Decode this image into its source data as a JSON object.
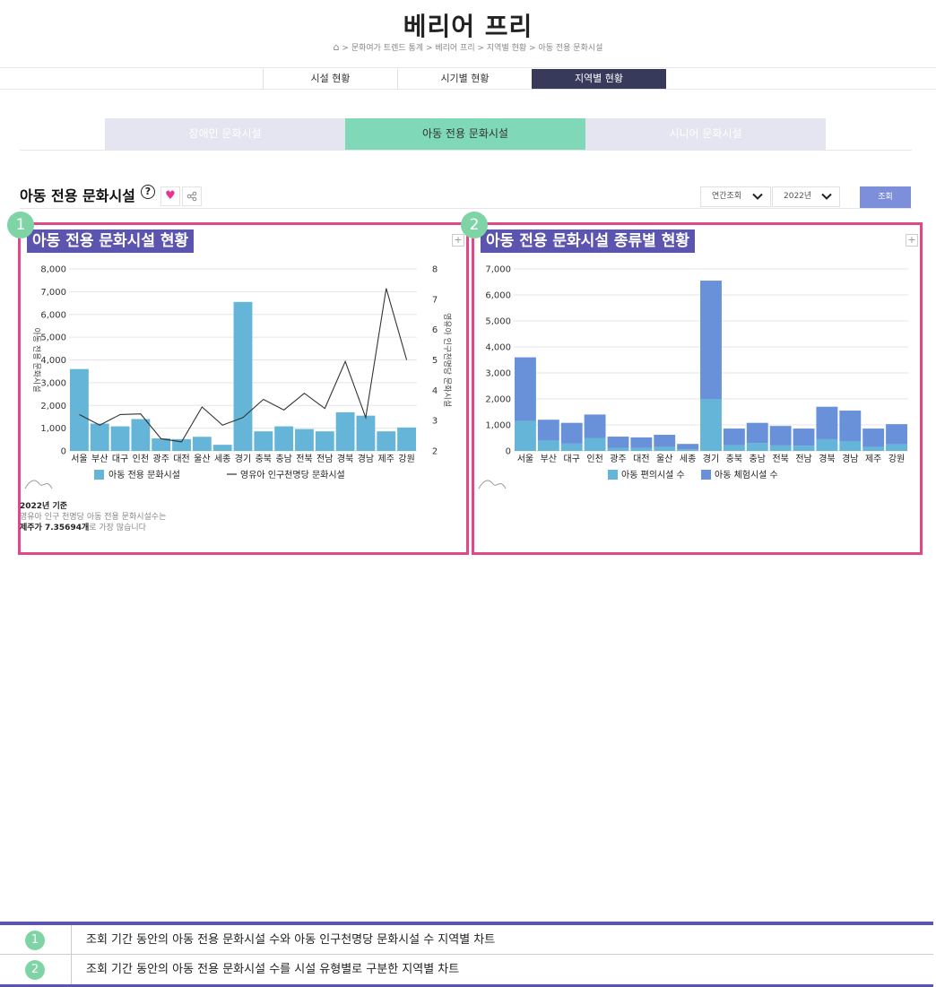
{
  "header": {
    "title": "베리어 프리",
    "breadcrumb": [
      "문화여가 트렌드 통계",
      "베리어 프리",
      "지역별 현황",
      "아동 전용 문화시설"
    ]
  },
  "main_tabs": [
    {
      "label": "시설 현황",
      "active": false
    },
    {
      "label": "시기별 현황",
      "active": false
    },
    {
      "label": "지역별 현황",
      "active": true
    }
  ],
  "sub_tabs": [
    {
      "label": "장애인 문화시설",
      "active": false
    },
    {
      "label": "아동 전용 문화시설",
      "active": true
    },
    {
      "label": "시니어 문화시설",
      "active": false
    }
  ],
  "section": {
    "title": "아동 전용 문화시설",
    "help": "?",
    "heart": "♥",
    "period_select": "연간조회",
    "year_select": "2022년",
    "search_label": "조회"
  },
  "colors": {
    "accent_purple": "#5c55b0",
    "highlight_pink": "#e2478a",
    "badge_green": "#7fd4a6",
    "bar_blue": "#64b5d8",
    "bar_dark": "#6891d9"
  },
  "panels": [
    {
      "badge": "1",
      "title": "아동 전용 문화시설 현황"
    },
    {
      "badge": "2",
      "title": "아동 전용 문화시설 종류별 현황"
    }
  ],
  "note": {
    "line1": "2022년 기준",
    "line2": "영유아 인구 천명당 아동 전용 문화시설수는",
    "line3_bold": "제주가 7.35694개",
    "line3_rest": "로 가장 많습니다"
  },
  "chart_data": [
    {
      "type": "bar",
      "categories": [
        "서울",
        "부산",
        "대구",
        "인천",
        "광주",
        "대전",
        "울산",
        "세종",
        "경기",
        "충북",
        "충남",
        "전북",
        "전남",
        "경북",
        "경남",
        "제주",
        "강원"
      ],
      "series": [
        {
          "name": "아동 전용 문화시설",
          "type": "bar",
          "axis": "left",
          "values": [
            3600,
            1200,
            1080,
            1400,
            550,
            520,
            620,
            270,
            6550,
            860,
            1080,
            960,
            860,
            1700,
            1550,
            860,
            1030
          ]
        },
        {
          "name": "영유아 인구천명당 문화시설",
          "type": "line",
          "axis": "right",
          "values": [
            3.2,
            2.85,
            3.2,
            3.22,
            2.4,
            2.3,
            3.45,
            2.85,
            3.1,
            3.7,
            3.35,
            3.9,
            3.4,
            4.95,
            3.1,
            7.36,
            5.0
          ]
        }
      ],
      "ylabel": "아동 전용 문화시설",
      "y2label": "영유아 인구천명당 문화시설",
      "ylim": [
        0,
        8000
      ],
      "y2lim": [
        2,
        8
      ],
      "yticks": [
        "0",
        "1,000",
        "2,000",
        "3,000",
        "4,000",
        "5,000",
        "6,000",
        "7,000",
        "8,000"
      ],
      "y2ticks": [
        "2",
        "3",
        "4",
        "5",
        "6",
        "7",
        "8"
      ],
      "grid": true,
      "legend": "bottom"
    },
    {
      "type": "bar",
      "stacked": true,
      "categories": [
        "서울",
        "부산",
        "대구",
        "인천",
        "광주",
        "대전",
        "울산",
        "세종",
        "경기",
        "충북",
        "충남",
        "전북",
        "전남",
        "경북",
        "경남",
        "제주",
        "강원"
      ],
      "series": [
        {
          "name": "아동 편의시설 수",
          "values": [
            1150,
            400,
            280,
            500,
            120,
            110,
            150,
            60,
            2000,
            220,
            300,
            210,
            200,
            450,
            380,
            150,
            250
          ]
        },
        {
          "name": "아동 체험시설 수",
          "values": [
            2450,
            800,
            800,
            900,
            430,
            410,
            470,
            210,
            4550,
            640,
            780,
            750,
            660,
            1250,
            1170,
            710,
            780
          ]
        }
      ],
      "ylim": [
        0,
        7000
      ],
      "yticks": [
        "0",
        "1,000",
        "2,000",
        "3,000",
        "4,000",
        "5,000",
        "6,000",
        "7,000"
      ],
      "grid": true,
      "legend": "bottom"
    }
  ],
  "legend_table": [
    {
      "num": "1",
      "text": "조회 기간 동안의 아동 전용 문화시설 수와 아동 인구천명당 문화시설 수 지역별 차트"
    },
    {
      "num": "2",
      "text": "조회 기간 동안의 아동 전용 문화시설 수를 시설 유형별로 구분한 지역별 차트"
    }
  ]
}
